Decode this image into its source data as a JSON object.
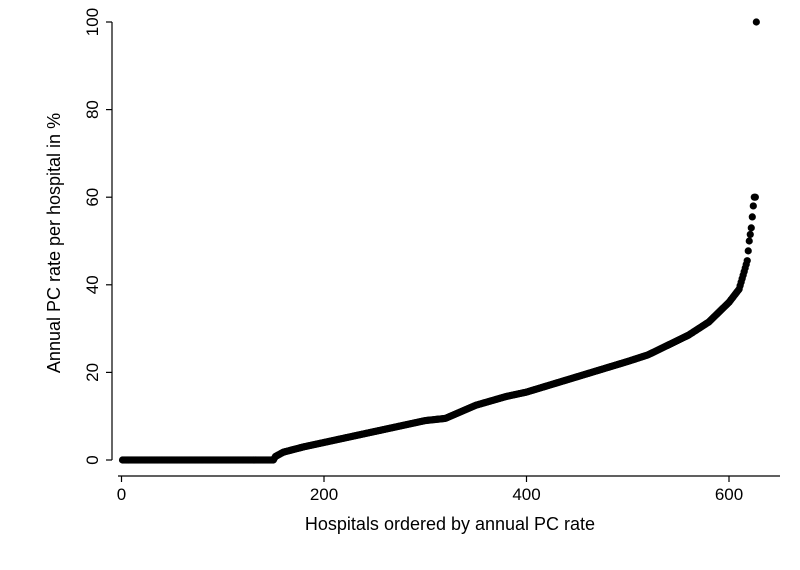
{
  "chart_data": {
    "type": "scatter",
    "title": "",
    "xlabel": "Hospitals ordered by annual PC rate",
    "ylabel": "Annual PC rate per hospital in %",
    "xlim": [
      0,
      650
    ],
    "ylim": [
      0,
      100
    ],
    "xticks": [
      "0",
      "200",
      "400",
      "600"
    ],
    "yticks": [
      "0",
      "20",
      "40",
      "60",
      "80",
      "100"
    ],
    "grid": false,
    "marker_color": "#000000",
    "n_points": 627,
    "curve_knots": {
      "x": [
        1,
        150,
        152,
        160,
        180,
        200,
        250,
        300,
        320,
        350,
        380,
        400,
        450,
        500,
        520,
        560,
        580,
        600,
        610,
        615,
        618,
        620,
        622,
        624,
        625,
        626,
        627
      ],
      "y": [
        0,
        0,
        0.8,
        1.8,
        3.0,
        4.0,
        6.5,
        9.0,
        9.5,
        12.5,
        14.5,
        15.5,
        19.0,
        22.5,
        24.0,
        28.5,
        31.5,
        36.0,
        39.0,
        43.0,
        45.5,
        50.0,
        53.0,
        58.0,
        60.0,
        60.0,
        100.0
      ]
    }
  }
}
